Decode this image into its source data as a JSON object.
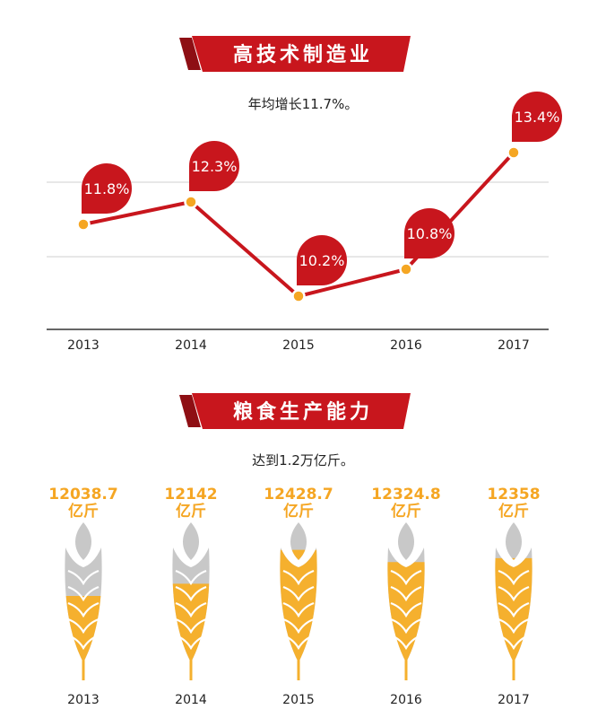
{
  "section1": {
    "title": "高技术制造业",
    "subtitle": "年均增长11.7%。"
  },
  "section2": {
    "title": "粮食生产能力",
    "subtitle": "达到1.2万亿斤。",
    "unit_label": "亿斤"
  },
  "colors": {
    "accent_red": "#c8161d",
    "banner_dark": "#8e0f14",
    "marker_fill": "#f5a623",
    "wheat_gold": "#f5b02e",
    "wheat_grey": "#c8c8c8",
    "grid": "#cfcfcf"
  },
  "chart_data": [
    {
      "type": "line",
      "x": [
        "2013",
        "2014",
        "2015",
        "2016",
        "2017"
      ],
      "series": [
        {
          "values": [
            11.8,
            12.3,
            10.2,
            10.8,
            13.4
          ]
        }
      ],
      "labels": [
        "11.8%",
        "12.3%",
        "10.2%",
        "10.8%",
        "13.4%"
      ],
      "ylim": [
        9,
        14
      ]
    },
    {
      "type": "bar",
      "categories": [
        "2013",
        "2014",
        "2015",
        "2016",
        "2017"
      ],
      "values": [
        12038.7,
        12142,
        12428.7,
        12324.8,
        12358
      ],
      "labels": [
        "12038.7",
        "12142",
        "12428.7",
        "12324.8",
        "12358"
      ],
      "ylim": [
        11500,
        12600
      ]
    }
  ]
}
